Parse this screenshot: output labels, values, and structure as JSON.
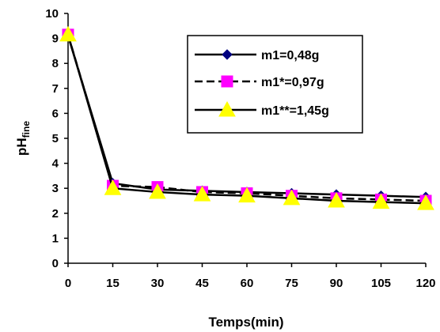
{
  "chart_data": {
    "type": "line",
    "xlabel": "Temps(min)",
    "ylabel_main": "pH",
    "ylabel_sub": "fine",
    "x": [
      0,
      15,
      30,
      45,
      60,
      75,
      90,
      105,
      120
    ],
    "xlim": [
      0,
      120
    ],
    "ylim": [
      0,
      10
    ],
    "yticks": [
      0,
      1,
      2,
      3,
      4,
      5,
      6,
      7,
      8,
      9,
      10
    ],
    "grid": false,
    "legend_position": "top-right",
    "series": [
      {
        "name": "m1=0,48g",
        "values": [
          9.1,
          3.2,
          2.95,
          2.9,
          2.85,
          2.8,
          2.75,
          2.7,
          2.65
        ],
        "color": "#000080",
        "marker": "diamond",
        "dash": "solid"
      },
      {
        "name": "m1*=0,97g",
        "values": [
          9.15,
          3.1,
          3.05,
          2.85,
          2.8,
          2.7,
          2.6,
          2.55,
          2.5
        ],
        "color": "#ff00ff",
        "marker": "square",
        "dash": "dashed"
      },
      {
        "name": "m1**=1,45g",
        "values": [
          9.15,
          3.0,
          2.85,
          2.75,
          2.7,
          2.6,
          2.5,
          2.45,
          2.4
        ],
        "color": "#ffff00",
        "marker": "triangle",
        "dash": "solid"
      }
    ]
  }
}
